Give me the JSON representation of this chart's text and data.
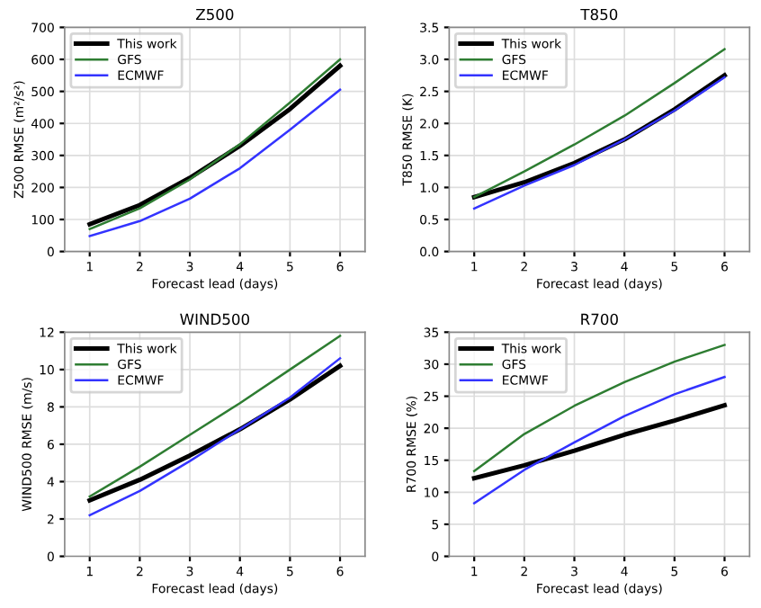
{
  "chart_data": [
    {
      "type": "line",
      "title": "Z500",
      "xlabel": "Forecast lead (days)",
      "ylabel": "Z500 RMSE (m²/s²)",
      "x": [
        1,
        2,
        3,
        4,
        5,
        6
      ],
      "xlim": [
        0.5,
        6.5
      ],
      "xticks": [
        1,
        2,
        3,
        4,
        5,
        6
      ],
      "ylim": [
        0,
        700
      ],
      "yticks": [
        0,
        100,
        200,
        300,
        400,
        500,
        600,
        700
      ],
      "grid": true,
      "legend": "top left",
      "series": [
        {
          "name": "This work",
          "color": "#000000",
          "values": [
            85,
            145,
            230,
            330,
            445,
            580
          ]
        },
        {
          "name": "GFS",
          "color": "#2e7d32",
          "values": [
            70,
            135,
            225,
            335,
            465,
            600
          ]
        },
        {
          "name": "ECMWF",
          "color": "#3333ff",
          "values": [
            48,
            95,
            165,
            260,
            380,
            505
          ]
        }
      ]
    },
    {
      "type": "line",
      "title": "T850",
      "xlabel": "Forecast lead (days)",
      "ylabel": "T850 RMSE (K)",
      "x": [
        1,
        2,
        3,
        4,
        5,
        6
      ],
      "xlim": [
        0.5,
        6.5
      ],
      "xticks": [
        1,
        2,
        3,
        4,
        5,
        6
      ],
      "ylim": [
        0,
        3.5
      ],
      "yticks": [
        {
          "value": 0,
          "label": "0.0"
        },
        0.5,
        {
          "value": 1,
          "label": "1.0"
        },
        1.5,
        {
          "value": 2,
          "label": "2.0"
        },
        2.5,
        {
          "value": 3,
          "label": "3.0"
        },
        3.5
      ],
      "grid": true,
      "legend": "top left",
      "series": [
        {
          "name": "This work",
          "color": "#000000",
          "values": [
            0.85,
            1.08,
            1.38,
            1.75,
            2.22,
            2.75
          ]
        },
        {
          "name": "GFS",
          "color": "#2e7d32",
          "values": [
            0.85,
            1.25,
            1.67,
            2.12,
            2.63,
            3.16
          ]
        },
        {
          "name": "ECMWF",
          "color": "#3333ff",
          "values": [
            0.67,
            1.03,
            1.35,
            1.75,
            2.2,
            2.72
          ]
        }
      ]
    },
    {
      "type": "line",
      "title": "WIND500",
      "xlabel": "Forecast lead (days)",
      "ylabel": "WIND500 RMSE (m/s)",
      "x": [
        1,
        2,
        3,
        4,
        5,
        6
      ],
      "xlim": [
        0.5,
        6.5
      ],
      "xticks": [
        1,
        2,
        3,
        4,
        5,
        6
      ],
      "ylim": [
        0,
        12
      ],
      "yticks": [
        0,
        2,
        4,
        6,
        8,
        10,
        12
      ],
      "grid": true,
      "legend": "top left",
      "series": [
        {
          "name": "This work",
          "color": "#000000",
          "values": [
            3.0,
            4.1,
            5.4,
            6.8,
            8.4,
            10.2
          ]
        },
        {
          "name": "GFS",
          "color": "#2e7d32",
          "values": [
            3.2,
            4.8,
            6.5,
            8.2,
            10.0,
            11.8
          ]
        },
        {
          "name": "ECMWF",
          "color": "#3333ff",
          "values": [
            2.2,
            3.5,
            5.1,
            6.8,
            8.5,
            10.6
          ]
        }
      ]
    },
    {
      "type": "line",
      "title": "R700",
      "xlabel": "Forecast lead (days)",
      "ylabel": "R700 RMSE (%)",
      "x": [
        1,
        2,
        3,
        4,
        5,
        6
      ],
      "xlim": [
        0.5,
        6.5
      ],
      "xticks": [
        1,
        2,
        3,
        4,
        5,
        6
      ],
      "ylim": [
        0,
        35
      ],
      "yticks": [
        0,
        5,
        10,
        15,
        20,
        25,
        30,
        35
      ],
      "grid": true,
      "legend": "top left",
      "series": [
        {
          "name": "This work",
          "color": "#000000",
          "values": [
            12.2,
            14.2,
            16.5,
            19.0,
            21.2,
            23.6
          ]
        },
        {
          "name": "GFS",
          "color": "#2e7d32",
          "values": [
            13.3,
            19.1,
            23.5,
            27.2,
            30.4,
            33.0
          ]
        },
        {
          "name": "ECMWF",
          "color": "#3333ff",
          "values": [
            8.3,
            13.5,
            17.8,
            21.9,
            25.3,
            28.0
          ]
        }
      ]
    }
  ]
}
